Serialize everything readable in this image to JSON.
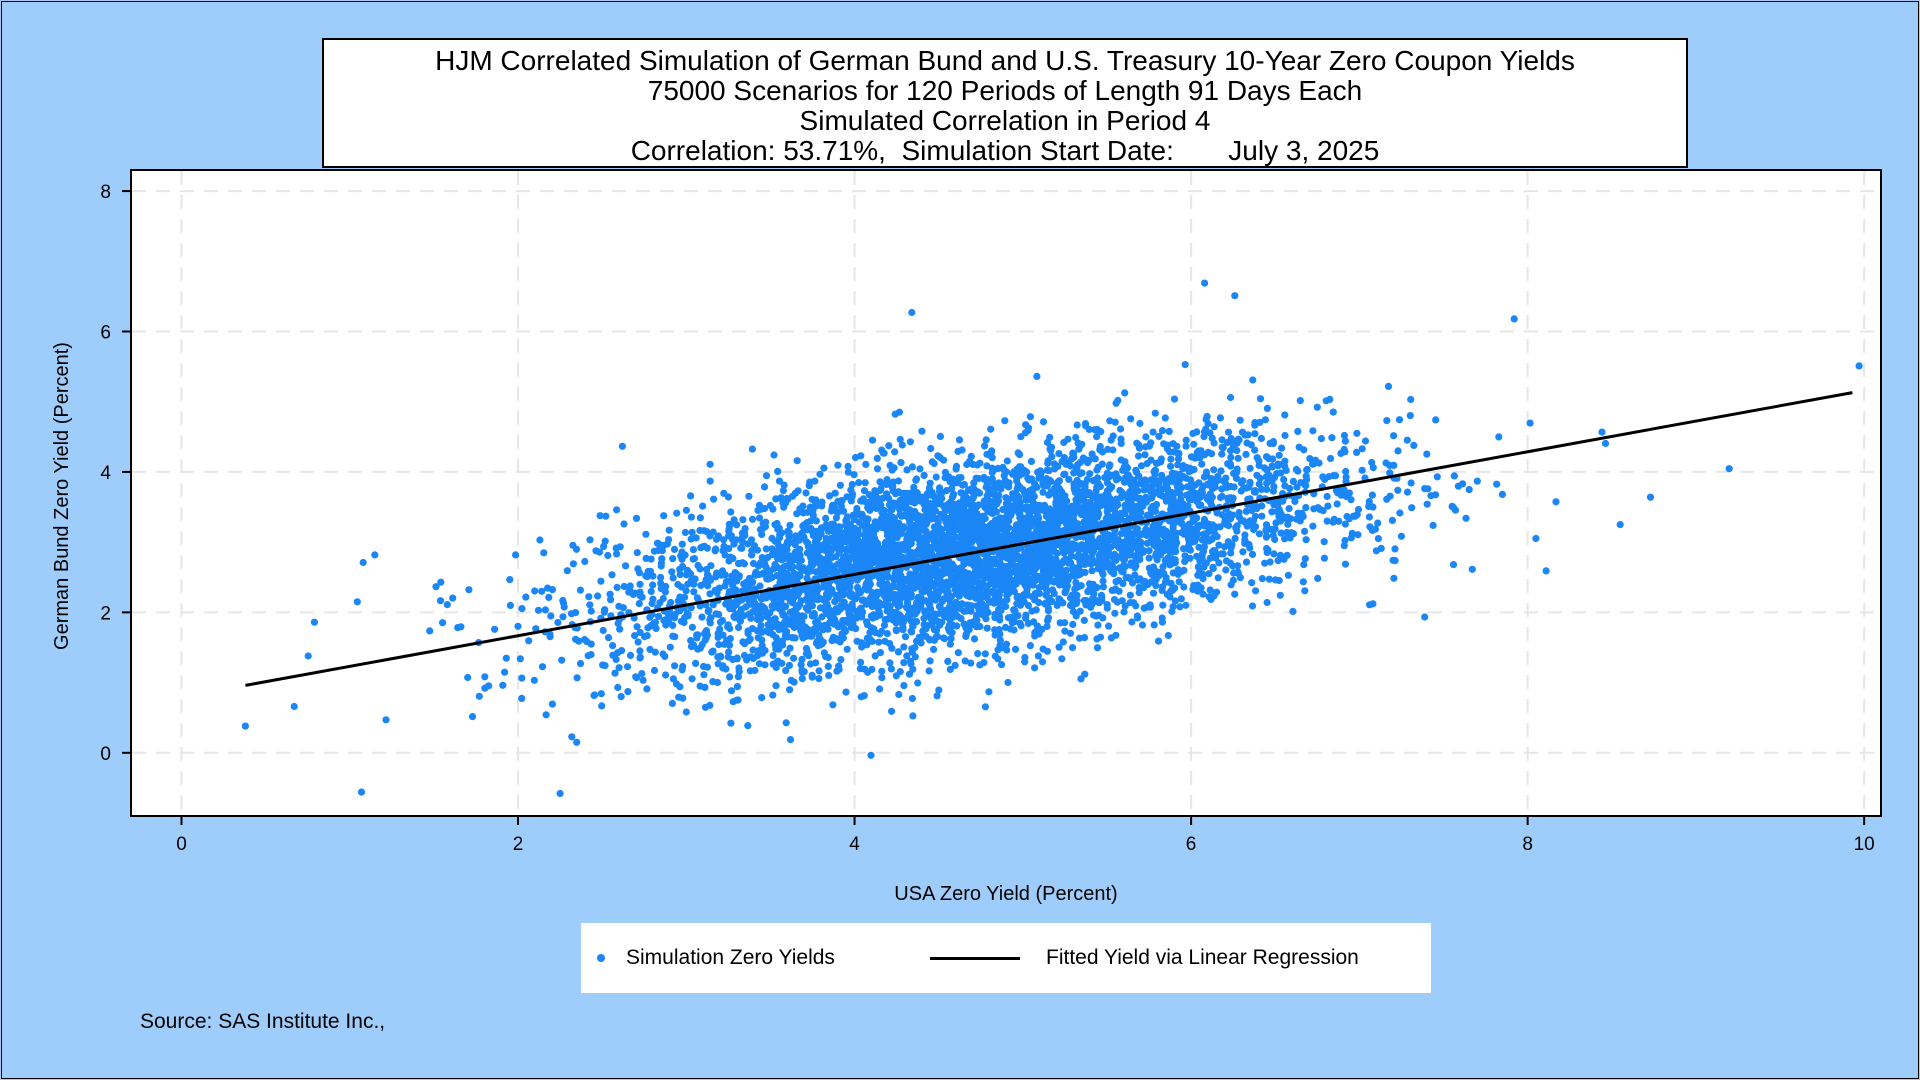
{
  "colors": {
    "background": "#9fcdfb",
    "plot_area": "#ffffff",
    "scatter": "#1b86f5",
    "fit_line": "#000000",
    "grid": "#e6e6e6"
  },
  "title": {
    "line1": "HJM Correlated Simulation of German Bund and U.S. Treasury 10-Year Zero Coupon Yields",
    "line2": "75000 Scenarios for 120 Periods of Length 91 Days Each",
    "line3": "Simulated Correlation in Period 4",
    "line4": "Correlation: 53.71%,  Simulation Start Date:       July 3, 2025"
  },
  "chart_data": {
    "type": "scatter",
    "xlabel": "USA Zero Yield (Percent)",
    "ylabel": "German Bund Zero Yield (Percent)",
    "xlim": [
      -0.3,
      10.1
    ],
    "ylim": [
      -0.9,
      8.3
    ],
    "x_ticks": [
      0,
      2,
      4,
      6,
      8,
      10
    ],
    "y_ticks": [
      0,
      2,
      4,
      6,
      8
    ],
    "grid": true,
    "grid_style": "dashed",
    "legend_placement": "bottom-center",
    "series": [
      {
        "name": "Simulation Zero Yields",
        "kind": "scatter",
        "scenario_count": 75000,
        "correlation": 0.5371,
        "cloud_center": [
          4.7,
          2.85
        ],
        "sample_points": [
          [
            0.38,
            0.38
          ],
          [
            1.07,
            -0.56
          ],
          [
            2.25,
            -0.58
          ],
          [
            4.34,
            6.27
          ],
          [
            6.08,
            6.69
          ],
          [
            6.26,
            6.51
          ],
          [
            7.92,
            6.18
          ],
          [
            9.97,
            5.51
          ],
          [
            8.11,
            2.59
          ],
          [
            8.55,
            3.25
          ],
          [
            8.73,
            3.64
          ],
          [
            1.08,
            2.71
          ],
          [
            0.67,
            0.66
          ],
          [
            7.85,
            3.68
          ],
          [
            0.79,
            1.86
          ]
        ]
      },
      {
        "name": "Fitted Yield via Linear Regression",
        "kind": "line",
        "points": [
          [
            0.38,
            0.96
          ],
          [
            9.93,
            5.13
          ]
        ]
      }
    ]
  },
  "legend": {
    "scatter_label": "Simulation Zero Yields",
    "line_label": "Fitted Yield via Linear Regression"
  },
  "source": "Source: SAS Institute Inc.,"
}
